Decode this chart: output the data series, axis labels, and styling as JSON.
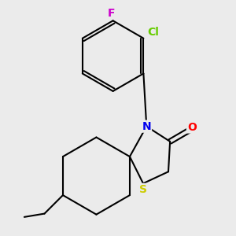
{
  "background_color": "#ebebeb",
  "bond_color": "#000000",
  "bond_width": 1.5,
  "atom_labels": {
    "F": {
      "color": "#cc00cc",
      "fontsize": 10,
      "fontweight": "bold"
    },
    "Cl": {
      "color": "#66cc00",
      "fontsize": 10,
      "fontweight": "bold"
    },
    "N": {
      "color": "#0000ee",
      "fontsize": 10,
      "fontweight": "bold"
    },
    "O": {
      "color": "#ff0000",
      "fontsize": 10,
      "fontweight": "bold"
    },
    "S": {
      "color": "#cccc00",
      "fontsize": 10,
      "fontweight": "bold"
    }
  },
  "figsize": [
    3.0,
    3.0
  ],
  "dpi": 100
}
